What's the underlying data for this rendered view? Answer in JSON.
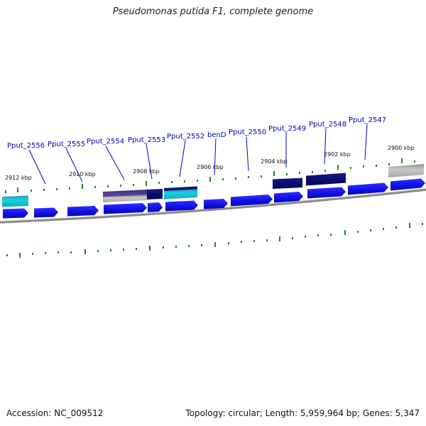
{
  "header": {
    "title": "Pseudomonas putida F1, complete genome"
  },
  "footer": {
    "accession": "Accession: NC_009512",
    "summary": "Topology: circular; Length: 5,959,964 bp; Genes: 5,347"
  },
  "scale_labels": [
    "2912 kbp",
    "2910 kbp",
    "2908 kbp",
    "2906 kbp",
    "2904 kbp",
    "2902 kbp",
    "2900 kbp"
  ],
  "gene_labels": [
    "Pput_2556",
    "Pput_2555",
    "Pput_2554",
    "Pput_2553",
    "Pput_2552",
    "benD",
    "Pput_2550",
    "Pput_2549",
    "Pput_2548",
    "Pput_2547"
  ],
  "colors": {
    "cds": "#1010ee",
    "feature_dark": "#0b0b70",
    "feature_cyan": "#18c8d8",
    "feature_purple": "#4a3a8a",
    "feature_grey": "#b0b0b0",
    "backbone": "#777777",
    "tick": "#1a8a1a",
    "label": "#0000bb"
  }
}
